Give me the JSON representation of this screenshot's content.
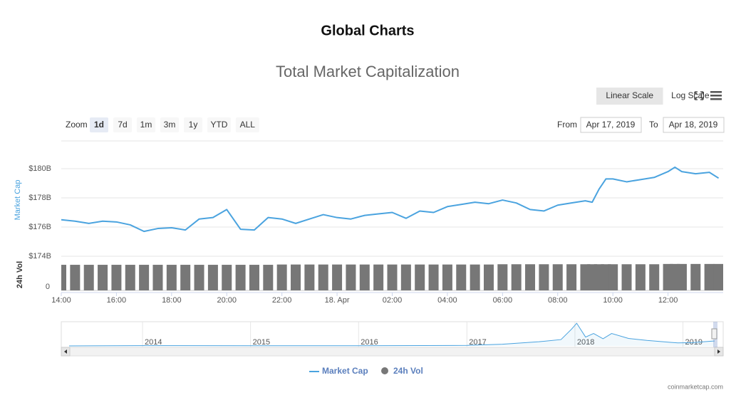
{
  "header": {
    "title": "Global Charts"
  },
  "controls": {
    "scale_buttons": [
      "Linear Scale",
      "Log Scale"
    ],
    "selected_scale": 0,
    "zoom_label": "Zoom",
    "zoom_buttons": [
      "1d",
      "7d",
      "1m",
      "3m",
      "1y",
      "YTD",
      "ALL"
    ],
    "selected_zoom": 0,
    "from_label": "From",
    "from": "Apr 17, 2019",
    "to_label": "To",
    "to": "Apr 18, 2019"
  },
  "chart_data": {
    "type": "line",
    "title": "Total Market Capitalization",
    "y_axis_label": "Market Cap",
    "x": [
      "2019-04-17T14:00",
      "2019-04-17T14:30",
      "2019-04-17T15:00",
      "2019-04-17T15:30",
      "2019-04-17T16:00",
      "2019-04-17T16:30",
      "2019-04-17T17:00",
      "2019-04-17T17:30",
      "2019-04-17T18:00",
      "2019-04-17T18:30",
      "2019-04-17T19:00",
      "2019-04-17T19:30",
      "2019-04-17T20:00",
      "2019-04-17T20:30",
      "2019-04-17T21:00",
      "2019-04-17T21:30",
      "2019-04-17T22:00",
      "2019-04-17T22:30",
      "2019-04-17T23:00",
      "2019-04-17T23:30",
      "2019-04-18T00:00",
      "2019-04-18T00:30",
      "2019-04-18T01:00",
      "2019-04-18T01:30",
      "2019-04-18T02:00",
      "2019-04-18T02:30",
      "2019-04-18T03:00",
      "2019-04-18T03:30",
      "2019-04-18T04:00",
      "2019-04-18T04:30",
      "2019-04-18T05:00",
      "2019-04-18T05:30",
      "2019-04-18T06:00",
      "2019-04-18T06:30",
      "2019-04-18T07:00",
      "2019-04-18T07:30",
      "2019-04-18T08:00",
      "2019-04-18T08:30",
      "2019-04-18T09:00",
      "2019-04-18T09:15",
      "2019-04-18T09:30",
      "2019-04-18T09:45",
      "2019-04-18T10:00",
      "2019-04-18T10:30",
      "2019-04-18T11:00",
      "2019-04-18T11:30",
      "2019-04-18T12:00",
      "2019-04-18T12:15",
      "2019-04-18T12:30",
      "2019-04-18T13:00",
      "2019-04-18T13:30",
      "2019-04-18T13:50"
    ],
    "series": [
      {
        "name": "Market Cap",
        "color": "#4aa3df",
        "values": [
          176.5,
          176.4,
          176.25,
          176.4,
          176.35,
          176.15,
          175.7,
          175.9,
          175.95,
          175.8,
          176.55,
          176.65,
          177.2,
          175.85,
          175.8,
          176.65,
          176.55,
          176.25,
          176.55,
          176.85,
          176.65,
          176.55,
          176.8,
          176.9,
          177.0,
          176.6,
          177.1,
          177.0,
          177.4,
          177.55,
          177.7,
          177.6,
          177.85,
          177.65,
          177.2,
          177.1,
          177.5,
          177.65,
          177.8,
          177.7,
          178.6,
          179.3,
          179.3,
          179.1,
          179.25,
          179.4,
          179.8,
          180.1,
          179.8,
          179.65,
          179.75,
          179.35
        ]
      }
    ],
    "xlim": [
      "2019-04-17T14:00",
      "2019-04-18T14:00"
    ],
    "xticks": [
      {
        "value": "2019-04-17T14:00",
        "label": "14:00"
      },
      {
        "value": "2019-04-17T16:00",
        "label": "16:00"
      },
      {
        "value": "2019-04-17T18:00",
        "label": "18:00"
      },
      {
        "value": "2019-04-17T20:00",
        "label": "20:00"
      },
      {
        "value": "2019-04-17T22:00",
        "label": "22:00"
      },
      {
        "value": "2019-04-18T00:00",
        "label": "18. Apr"
      },
      {
        "value": "2019-04-18T02:00",
        "label": "02:00"
      },
      {
        "value": "2019-04-18T04:00",
        "label": "04:00"
      },
      {
        "value": "2019-04-18T06:00",
        "label": "06:00"
      },
      {
        "value": "2019-04-18T08:00",
        "label": "08:00"
      },
      {
        "value": "2019-04-18T10:00",
        "label": "10:00"
      },
      {
        "value": "2019-04-18T12:00",
        "label": "12:00"
      }
    ],
    "ylim": [
      174,
      182
    ],
    "yticks": [
      {
        "value": 174,
        "label": "$174B"
      },
      {
        "value": 176,
        "label": "$176B"
      },
      {
        "value": 178,
        "label": "$178B"
      },
      {
        "value": 180,
        "label": "$180B"
      }
    ],
    "grid": true,
    "volume": {
      "name": "24h Vol",
      "color": "#777777",
      "axis_label": "24h Vol",
      "values": [
        46,
        46,
        46,
        46,
        46,
        46,
        46,
        46,
        46,
        46,
        46,
        46,
        46,
        46,
        46,
        46,
        46.5,
        46.5,
        46.5,
        46.5,
        46.5,
        46.5,
        46.5,
        46.5,
        46.5,
        46.5,
        46.5,
        46.5,
        46.5,
        46.5,
        46.5,
        46.5,
        47,
        47,
        47,
        47,
        47,
        47,
        47,
        47,
        47,
        47,
        47,
        47,
        47,
        47,
        47.5,
        47.5,
        47.5,
        47.5,
        47.5,
        47.5
      ],
      "ylim": [
        0,
        55
      ],
      "yticks": [
        0
      ]
    },
    "navigator": {
      "color": "#4aa3df",
      "x": [
        "2013-04-28",
        "2014-01-01",
        "2015-01-01",
        "2016-01-01",
        "2017-01-01",
        "2017-05-01",
        "2017-09-01",
        "2017-11-15",
        "2017-12-20",
        "2018-01-07",
        "2018-02-06",
        "2018-03-05",
        "2018-04-06",
        "2018-05-05",
        "2018-07-01",
        "2018-09-01",
        "2018-11-20",
        "2018-12-15",
        "2019-02-01",
        "2019-04-18"
      ],
      "values": [
        1.5,
        10,
        5,
        7,
        18,
        60,
        150,
        230,
        600,
        820,
        320,
        450,
        260,
        450,
        270,
        200,
        130,
        110,
        120,
        180
      ],
      "xlim": [
        "2013-04-28",
        "2019-04-18"
      ],
      "ylim": [
        0,
        850
      ],
      "xticks": [
        {
          "value": "2014-01-01",
          "label": "2014"
        },
        {
          "value": "2015-01-01",
          "label": "2015"
        },
        {
          "value": "2016-01-01",
          "label": "2016"
        },
        {
          "value": "2017-01-01",
          "label": "2017"
        },
        {
          "value": "2018-01-01",
          "label": "2018"
        },
        {
          "value": "2019-01-01",
          "label": "2019"
        }
      ]
    },
    "credit": "coinmarketcap.com"
  }
}
